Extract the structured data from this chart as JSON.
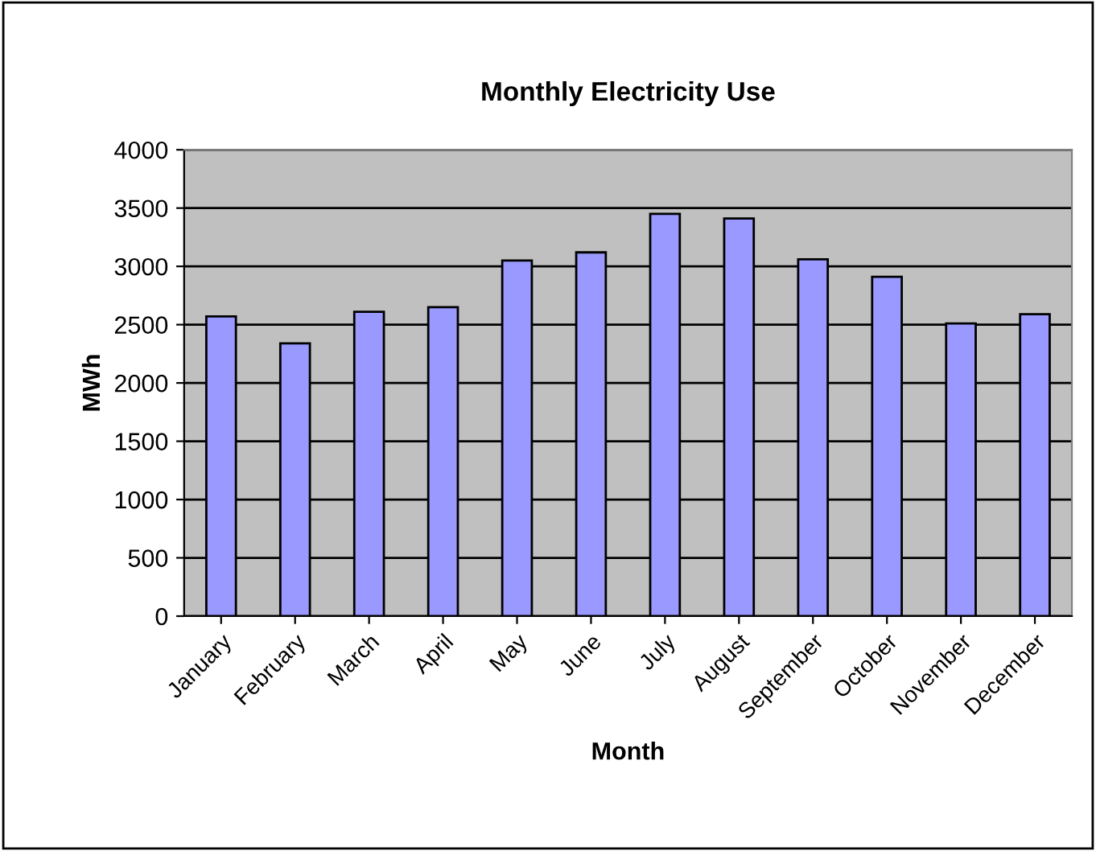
{
  "chart_data": {
    "type": "bar",
    "title": "Monthly Electricity Use",
    "xlabel": "Month",
    "ylabel": "MWh",
    "categories": [
      "January",
      "February",
      "March",
      "April",
      "May",
      "June",
      "July",
      "August",
      "September",
      "October",
      "November",
      "December"
    ],
    "values": [
      2570,
      2340,
      2610,
      2650,
      3050,
      3120,
      3450,
      3410,
      3060,
      2910,
      2510,
      2590
    ],
    "color": "#9999ff",
    "ylim": [
      0,
      4000
    ],
    "yticks": [
      0,
      500,
      1000,
      1500,
      2000,
      2500,
      3000,
      3500,
      4000
    ],
    "grid": "y",
    "legend": false
  }
}
